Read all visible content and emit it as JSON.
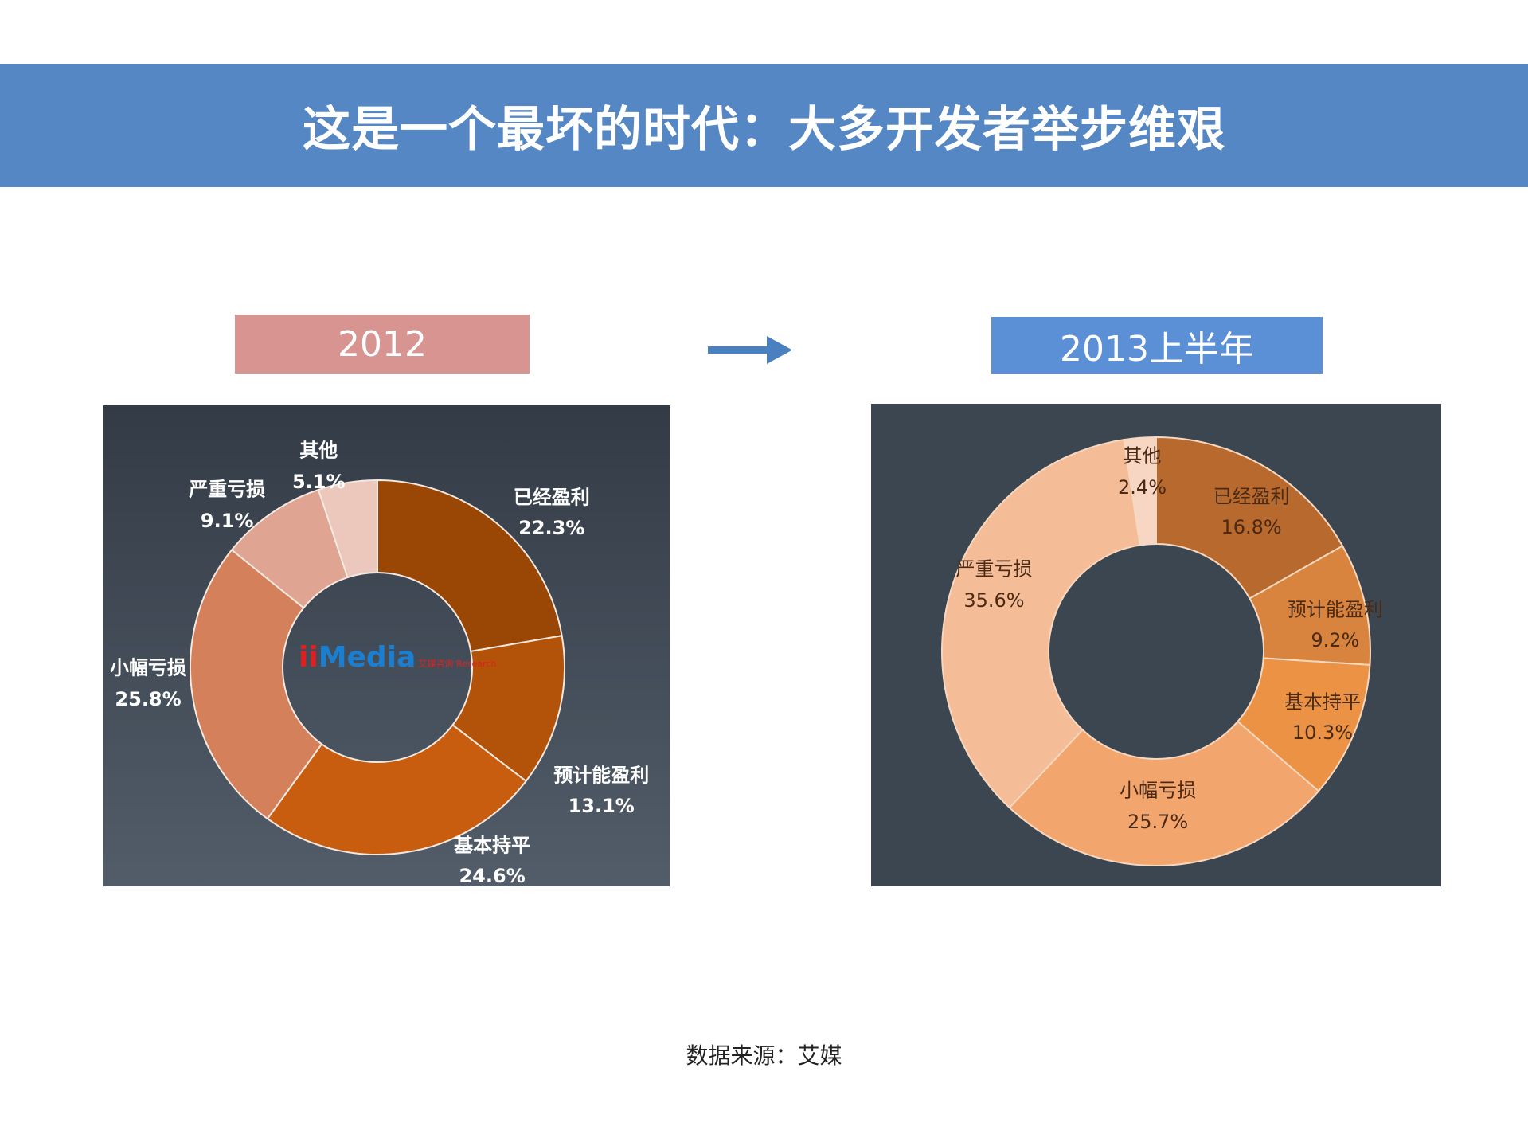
{
  "title": "这是一个最坏的时代：大多开发者举步维艰",
  "source": "数据来源：艾媒",
  "arrow_icon": "right-arrow",
  "logo": {
    "mark": "ii",
    "text": "Media",
    "sub": "艾媒咨询 Research"
  },
  "chart_data": [
    {
      "type": "pie",
      "donut": true,
      "title": "2012",
      "title_color": "#d89490",
      "categories": [
        "已经盈利",
        "预计能盈利",
        "基本持平",
        "小幅亏损",
        "严重亏损",
        "其他"
      ],
      "values": [
        22.3,
        13.1,
        24.6,
        25.8,
        9.1,
        5.1
      ],
      "labels": [
        "22.3%",
        "13.1%",
        "24.6%",
        "25.8%",
        "9.1%",
        "5.1%"
      ],
      "colors": [
        "#9a4706",
        "#b35309",
        "#c85d10",
        "#d4805a",
        "#e0a592",
        "#ecc8bc"
      ],
      "start": "12 o'clock, clockwise"
    },
    {
      "type": "pie",
      "donut": true,
      "title": "2013上半年",
      "title_color": "#5b8fd6",
      "categories": [
        "已经盈利",
        "预计能盈利",
        "基本持平",
        "小幅亏损",
        "严重亏损",
        "其他"
      ],
      "values": [
        16.8,
        9.2,
        10.3,
        25.7,
        35.6,
        2.4
      ],
      "labels": [
        "16.8%",
        "9.2%",
        "10.3%",
        "25.7%",
        "35.6%",
        "2.4%"
      ],
      "colors": [
        "#b8692e",
        "#d9843e",
        "#ec9245",
        "#f3a56e",
        "#f5bc98",
        "#f8d6c4"
      ],
      "start": "12 o'clock, clockwise"
    }
  ]
}
